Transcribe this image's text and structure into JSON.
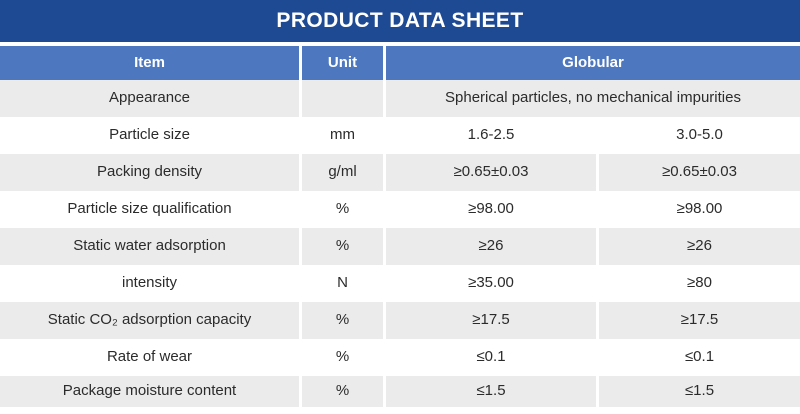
{
  "title": "PRODUCT DATA SHEET",
  "colors": {
    "title_bar_bg": "#1e4a94",
    "header_bg": "#4d78bf",
    "row_shade_bg": "#ebebeb",
    "row_plain_bg": "#ffffff",
    "header_text": "#ffffff",
    "body_text": "#2b2b2b"
  },
  "table": {
    "headers": {
      "item": "Item",
      "unit": "Unit",
      "value_group": "Globular"
    },
    "rows": [
      {
        "item": "Appearance",
        "unit": "",
        "span": "Spherical particles, no mechanical impurities"
      },
      {
        "item": "Particle size",
        "unit": "mm",
        "v1": "1.6-2.5",
        "v2": "3.0-5.0"
      },
      {
        "item": "Packing density",
        "unit": "g/ml",
        "v1": "≥0.65±0.03",
        "v2": "≥0.65±0.03"
      },
      {
        "item": "Particle size qualification",
        "unit": "%",
        "v1": "≥98.00",
        "v2": "≥98.00"
      },
      {
        "item": "Static water adsorption",
        "unit": "%",
        "v1": "≥26",
        "v2": "≥26"
      },
      {
        "item": "intensity",
        "unit": "N",
        "v1": "≥35.00",
        "v2": "≥80"
      },
      {
        "item": "Static CO₂ adsorption capacity",
        "unit": "%",
        "v1": "≥17.5",
        "v2": "≥17.5"
      },
      {
        "item": "Rate of wear",
        "unit": "%",
        "v1": "≤0.1",
        "v2": "≤0.1"
      },
      {
        "item": "Package moisture content",
        "unit": "%",
        "v1": "≤1.5",
        "v2": "≤1.5"
      }
    ]
  }
}
